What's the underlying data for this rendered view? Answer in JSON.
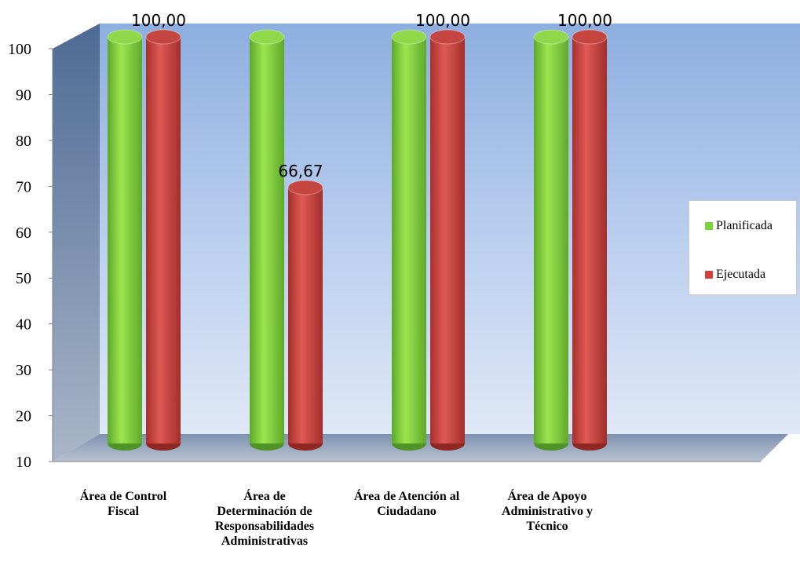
{
  "chart_data": {
    "type": "bar",
    "categories": [
      "Área de Control Fiscal",
      "Área de Determinación de Responsabilidades Administrativas",
      "Área de Atención al Ciudadano",
      "Área de Apoyo Administrativo y Técnico"
    ],
    "category_lines": [
      [
        "Área de Control",
        "Fiscal"
      ],
      [
        "Área de",
        "Determinación de",
        "Responsabilidades",
        "Administrativas"
      ],
      [
        "Área de Atención al",
        "Ciudadano"
      ],
      [
        "Área de Apoyo",
        "Administrativo y",
        "Técnico"
      ]
    ],
    "series": [
      {
        "name": "Planificada",
        "color": "#7ed13a",
        "values": [
          100,
          100,
          100,
          100
        ],
        "labels": [
          "",
          "",
          "",
          ""
        ]
      },
      {
        "name": "Ejecutada",
        "color": "#d43f3a",
        "values": [
          100,
          66.67,
          100,
          100
        ],
        "labels": [
          "100,00",
          "66,67",
          "100,00",
          "100,00"
        ]
      }
    ],
    "yticks": [
      "10",
      "20",
      "30",
      "40",
      "50",
      "60",
      "70",
      "80",
      "90",
      "100"
    ],
    "ylim": [
      10,
      100
    ],
    "legend_position": "right",
    "grid": false,
    "style": "3d-cylinder"
  }
}
